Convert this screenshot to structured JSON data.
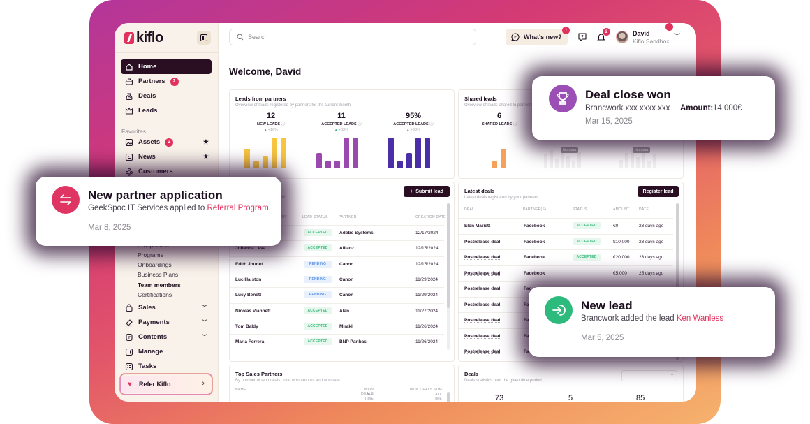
{
  "app": {
    "brand": "kiflo"
  },
  "sidebar": {
    "items": [
      {
        "label": "Home",
        "icon": "home-icon",
        "active": true
      },
      {
        "label": "Partners",
        "icon": "briefcase-icon",
        "badge": "2"
      },
      {
        "label": "Deals",
        "icon": "money-bag-icon"
      },
      {
        "label": "Leads",
        "icon": "crown-icon"
      }
    ],
    "favorites_label": "Favorites",
    "favorites": [
      {
        "label": "Assets",
        "icon": "image-icon",
        "badge": "2",
        "starred": true
      },
      {
        "label": "News",
        "icon": "newspaper-icon",
        "starred": true
      },
      {
        "label": "Customers",
        "icon": "people-icon"
      }
    ],
    "sub_items": [
      {
        "label": "Prospection"
      },
      {
        "label": "Programs"
      },
      {
        "label": "Onboardings"
      },
      {
        "label": "Business Plans"
      },
      {
        "label": "Team members",
        "bold": true
      },
      {
        "label": "Certifications"
      }
    ],
    "groups": [
      {
        "label": "Sales",
        "icon": "shopping-bag-icon",
        "expandable": true
      },
      {
        "label": "Payments",
        "icon": "payment-icon",
        "expandable": true
      },
      {
        "label": "Contents",
        "icon": "content-icon",
        "expandable": true
      },
      {
        "label": "Manage",
        "icon": "sliders-icon"
      },
      {
        "label": "Tasks",
        "icon": "checklist-icon"
      }
    ],
    "refer": {
      "label": "Refer Kiflo"
    }
  },
  "header": {
    "search_placeholder": "Search",
    "whats_new": "What's new?",
    "whats_new_badge": "1",
    "notifications_badge": "2",
    "user_name": "David",
    "user_org": "Kiflo Sandbox"
  },
  "welcome": "Welcome, David",
  "leads_from_partners": {
    "title": "Leads from partners",
    "subtitle": "Overview of leads registered by partners for the current month",
    "kpis": [
      {
        "value": "12",
        "label": "NEW LEADS",
        "change": "+16%"
      },
      {
        "value": "11",
        "label": "ACCEPTED LEADS",
        "change": "+33%"
      },
      {
        "value": "95%",
        "label": "ACCEPTED LEADS",
        "change": "+33%"
      }
    ]
  },
  "shared_leads": {
    "title": "Shared leads",
    "subtitle": "Overview of leads shared to partners",
    "kpi": {
      "value": "6",
      "label": "SHARED LEADS"
    },
    "no_data": "No data"
  },
  "leads_table": {
    "submit_label": "Submit lead",
    "subtitle_fragment": "low",
    "columns": [
      "COMPANY",
      "LEAD STATUS",
      "PARTNER",
      "CREATION DATE"
    ],
    "rows": [
      {
        "name": "",
        "status": "ACCEPTED",
        "partner": "Adobe Systems",
        "date": "12/17/2024"
      },
      {
        "name": "Johanna Leva",
        "status": "ACCEPTED",
        "partner": "Allianz",
        "date": "12/15/2024"
      },
      {
        "name": "Edith Jounet",
        "status": "PENDING",
        "partner": "Canon",
        "date": "12/15/2024"
      },
      {
        "name": "Luc Halston",
        "status": "PENDING",
        "partner": "Canon",
        "date": "11/29/2024"
      },
      {
        "name": "Lucy Benett",
        "status": "PENDING",
        "partner": "Canon",
        "date": "11/29/2024"
      },
      {
        "name": "Nicolas Viannett",
        "status": "ACCEPTED",
        "partner": "Alan",
        "date": "11/27/2024"
      },
      {
        "name": "Tom Baldy",
        "status": "ACCEPTED",
        "partner": "Mirakl",
        "date": "11/26/2024"
      },
      {
        "name": "Maria Ferrera",
        "status": "ACCEPTED",
        "partner": "BNP Paribas",
        "date": "11/26/2024"
      }
    ]
  },
  "latest_deals": {
    "title": "Latest deals",
    "subtitle": "Latest deals registered by your partners",
    "register_label": "Register lead",
    "columns": [
      "DEAL",
      "PARTNER(S)",
      "STATUS",
      "AMOUNT",
      "DATE"
    ],
    "rows": [
      {
        "deal": "Elon Mariett",
        "partner": "Facebook",
        "status": "ACCEPTED",
        "amount": "€0",
        "date": "23 days ago"
      },
      {
        "deal": "Postrelease deal",
        "partner": "Facebook",
        "status": "ACCEPTED",
        "amount": "$10,000",
        "date": "23 days ago"
      },
      {
        "deal": "Postrelease deal",
        "partner": "Facebook",
        "status": "ACCEPTED",
        "amount": "€20,000",
        "date": "23 days ago"
      },
      {
        "deal": "Postrelease deal",
        "partner": "Facebook",
        "status": "",
        "amount": "€5,000",
        "date": "25 days ago"
      },
      {
        "deal": "Postrelease deal",
        "partner": "Fac",
        "status": "",
        "amount": "",
        "date": ""
      },
      {
        "deal": "Postrelease deal",
        "partner": "Fa",
        "status": "",
        "amount": "",
        "date": ""
      },
      {
        "deal": "Postrelease deal",
        "partner": "Fa",
        "status": "",
        "amount": "",
        "date": ""
      },
      {
        "deal": "Postrelease deal",
        "partner": "Fa",
        "status": "",
        "amount": "",
        "date": ""
      },
      {
        "deal": "Postrelease deal",
        "partner": "Fa",
        "status": "",
        "amount": "",
        "date": ""
      }
    ]
  },
  "top_sales": {
    "title": "Top Sales Partners",
    "subtitle": "By number of won deals, total won amount and won rate",
    "col_name": "NAME",
    "col_won": "WON DEALS",
    "col_won_sub": "ALL TIME",
    "col_sum": "WON DEALS SUM",
    "col_sum_sub": "ALL TIME"
  },
  "deals_stats": {
    "title": "Deals",
    "subtitle": "Deals statistics over the given time period",
    "values": [
      "73",
      "5",
      "85"
    ]
  },
  "notifications": {
    "deal_won": {
      "title": "Deal close won",
      "desc": "Brancwork xxx xxxx xxx",
      "amount_label": "Amount:",
      "amount": "14 000€",
      "date": "Mar 15, 2025"
    },
    "partner_app": {
      "title": "New partner application",
      "desc": "GeekSpoc IT Services applied to ",
      "highlight": "Referral Program",
      "date": "Mar 8, 2025"
    },
    "new_lead": {
      "title": "New lead",
      "desc": "Brancwork added the lead ",
      "highlight": "Ken Wanless",
      "date": "Mar 5, 2025"
    }
  },
  "colors": {
    "brand": "#e0325d",
    "dark": "#2a0f23",
    "yellow": "#f7c53f",
    "purple": "#9a4aae",
    "indigo": "#4b2fa8",
    "orange": "#f6a05a",
    "green": "#2dbb7d"
  },
  "chart_data": [
    {
      "type": "bar",
      "title": "NEW LEADS",
      "values": [
        5,
        2,
        3,
        8,
        8
      ],
      "color": "#f7c53f"
    },
    {
      "type": "bar",
      "title": "ACCEPTED LEADS",
      "values": [
        4,
        2,
        2,
        8,
        8
      ],
      "color": "#9a4aae"
    },
    {
      "type": "bar",
      "title": "ACCEPTED LEADS %",
      "values": [
        8,
        2,
        4,
        8,
        8
      ],
      "color": "#4b2fa8"
    },
    {
      "type": "bar",
      "title": "SHARED LEADS",
      "values": [
        2,
        5
      ],
      "color": "#f6a05a"
    }
  ]
}
